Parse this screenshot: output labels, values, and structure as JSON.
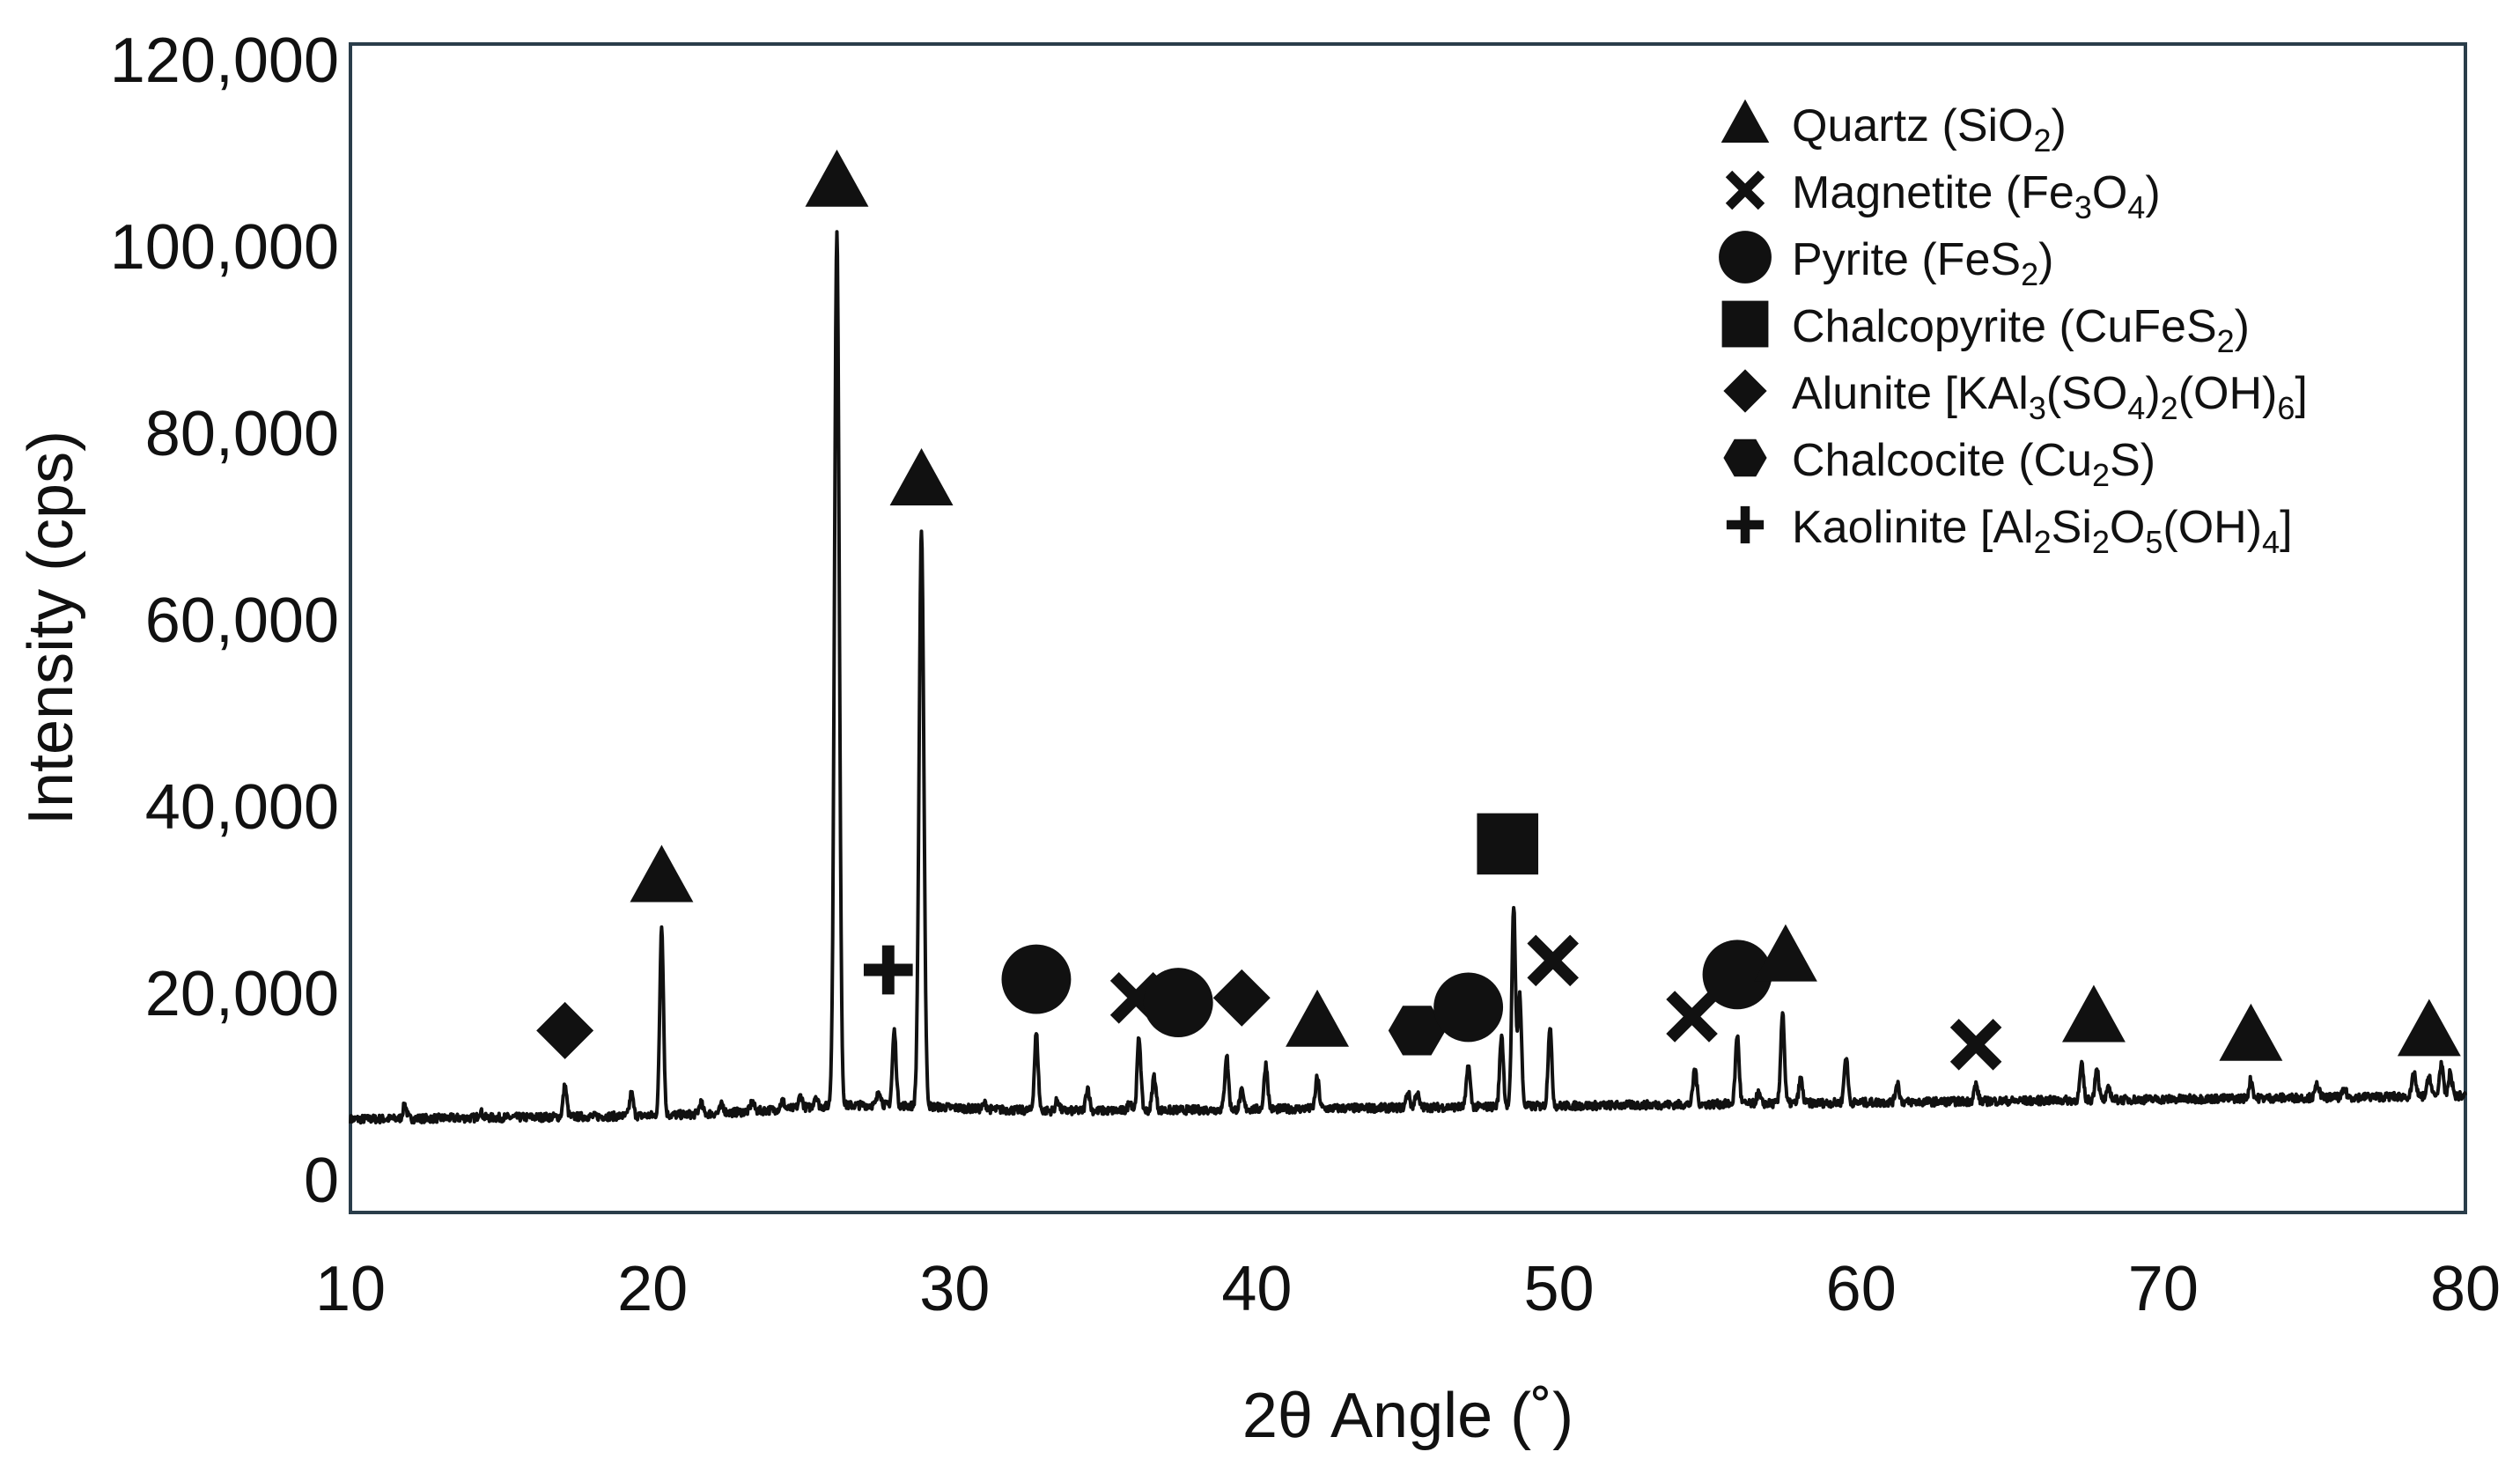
{
  "chart_data": {
    "type": "line",
    "title": "",
    "xlabel": "2θ Angle (˚)",
    "ylabel": "Intensity (cps)",
    "xlim": [
      10,
      80
    ],
    "ylim": [
      0,
      120000
    ],
    "xticks": [
      10,
      20,
      30,
      40,
      50,
      60,
      70,
      80
    ],
    "xtick_labels": [
      "10",
      "20",
      "30",
      "40",
      "50",
      "60",
      "70",
      "80"
    ],
    "yticks": [
      0,
      20000,
      40000,
      60000,
      80000,
      100000,
      120000
    ],
    "ytick_labels": [
      "0",
      "20,000",
      "40,000",
      "60,000",
      "80,000",
      "100,000",
      "120,000"
    ],
    "grid": false,
    "legend_position": "top-right",
    "background": {
      "x_start": 10,
      "y_start": 6500,
      "x_end": 80,
      "y_end": 9000
    },
    "series": [
      {
        "line_color": "#111111",
        "peaks": [
          {
            "x": 11.8,
            "y": 1500
          },
          {
            "x": 14.3,
            "y": 700
          },
          {
            "x": 17.1,
            "y": 3300
          },
          {
            "x": 19.3,
            "y": 2400
          },
          {
            "x": 20.3,
            "y": 20500
          },
          {
            "x": 21.6,
            "y": 1200
          },
          {
            "x": 22.3,
            "y": 900
          },
          {
            "x": 23.3,
            "y": 1000
          },
          {
            "x": 24.3,
            "y": 900
          },
          {
            "x": 24.9,
            "y": 1300
          },
          {
            "x": 25.4,
            "y": 1200
          },
          {
            "x": 26.1,
            "y": 94000
          },
          {
            "x": 27.5,
            "y": 1600
          },
          {
            "x": 28.0,
            "y": 8000
          },
          {
            "x": 28.9,
            "y": 62000
          },
          {
            "x": 31.0,
            "y": 600
          },
          {
            "x": 32.7,
            "y": 8200
          },
          {
            "x": 33.4,
            "y": 1200
          },
          {
            "x": 34.4,
            "y": 2500
          },
          {
            "x": 35.8,
            "y": 1000
          },
          {
            "x": 36.1,
            "y": 7800
          },
          {
            "x": 36.6,
            "y": 3700
          },
          {
            "x": 39.0,
            "y": 5800
          },
          {
            "x": 39.5,
            "y": 1900
          },
          {
            "x": 40.3,
            "y": 4800
          },
          {
            "x": 42.0,
            "y": 3300
          },
          {
            "x": 45.0,
            "y": 1600
          },
          {
            "x": 45.3,
            "y": 1600
          },
          {
            "x": 47.0,
            "y": 4500
          },
          {
            "x": 48.1,
            "y": 7700
          },
          {
            "x": 48.5,
            "y": 21500
          },
          {
            "x": 48.7,
            "y": 12000
          },
          {
            "x": 49.7,
            "y": 8600
          },
          {
            "x": 54.5,
            "y": 3900
          },
          {
            "x": 55.9,
            "y": 7400
          },
          {
            "x": 56.6,
            "y": 1100
          },
          {
            "x": 57.4,
            "y": 9800
          },
          {
            "x": 58.0,
            "y": 2600
          },
          {
            "x": 59.5,
            "y": 5000
          },
          {
            "x": 61.2,
            "y": 2100
          },
          {
            "x": 63.8,
            "y": 1800
          },
          {
            "x": 67.3,
            "y": 3700
          },
          {
            "x": 67.8,
            "y": 3500
          },
          {
            "x": 68.2,
            "y": 1200
          },
          {
            "x": 72.9,
            "y": 2000
          },
          {
            "x": 75.1,
            "y": 1500
          },
          {
            "x": 76.0,
            "y": 800
          },
          {
            "x": 78.3,
            "y": 2500
          },
          {
            "x": 78.8,
            "y": 2200
          },
          {
            "x": 79.2,
            "y": 3500
          },
          {
            "x": 79.5,
            "y": 2500
          }
        ]
      }
    ],
    "legend": [
      {
        "symbol": "triangle",
        "label": "Quartz (SiO",
        "sub": "2",
        "suffix": ")"
      },
      {
        "symbol": "cross-x",
        "label": "Magnetite (Fe",
        "sub": "3",
        "mid": "O",
        "sub2": "4",
        "suffix": ")"
      },
      {
        "symbol": "circle",
        "label": "Pyrite (FeS",
        "sub": "2",
        "suffix": ")"
      },
      {
        "symbol": "square",
        "label": "Chalcopyrite (CuFeS",
        "sub": "2",
        "suffix": ")"
      },
      {
        "symbol": "diamond",
        "label": "Alunite [KAl",
        "sub": "3",
        "mid": "(SO",
        "sub2": "4",
        "mid2": ")",
        "sub3": "2",
        "mid3": "(OH)",
        "sub4": "6",
        "suffix": "]"
      },
      {
        "symbol": "hexagon",
        "label": "Chalcocite (Cu",
        "sub": "2",
        "suffix": "S)"
      },
      {
        "symbol": "plus",
        "label": "Kaolinite [Al",
        "sub": "2",
        "mid": "Si",
        "sub2": "2",
        "mid2": "O",
        "sub3": "5",
        "mid3": "(OH)",
        "sub4": "4",
        "suffix": "]"
      }
    ],
    "annotations": [
      {
        "symbol": "diamond",
        "x": 17.1,
        "y": 16000
      },
      {
        "symbol": "triangle",
        "x": 20.3,
        "y": 32500
      },
      {
        "symbol": "triangle",
        "x": 26.1,
        "y": 107000
      },
      {
        "symbol": "plus",
        "x": 27.8,
        "y": 22500
      },
      {
        "symbol": "triangle",
        "x": 28.9,
        "y": 75000
      },
      {
        "symbol": "circle",
        "x": 32.7,
        "y": 21500
      },
      {
        "symbol": "cross-x",
        "x": 36.0,
        "y": 19500
      },
      {
        "symbol": "circle",
        "x": 37.4,
        "y": 19000
      },
      {
        "symbol": "diamond",
        "x": 39.5,
        "y": 19500
      },
      {
        "symbol": "triangle",
        "x": 42.0,
        "y": 17000
      },
      {
        "symbol": "hexagon",
        "x": 45.3,
        "y": 16000
      },
      {
        "symbol": "circle",
        "x": 47.0,
        "y": 18500
      },
      {
        "symbol": "square",
        "x": 48.3,
        "y": 36000
      },
      {
        "symbol": "cross-x",
        "x": 49.8,
        "y": 23500
      },
      {
        "symbol": "cross-x",
        "x": 54.4,
        "y": 17500
      },
      {
        "symbol": "circle",
        "x": 55.9,
        "y": 22000
      },
      {
        "symbol": "triangle",
        "x": 57.5,
        "y": 24000
      },
      {
        "symbol": "cross-x",
        "x": 63.8,
        "y": 14500
      },
      {
        "symbol": "triangle",
        "x": 67.7,
        "y": 17500
      },
      {
        "symbol": "triangle",
        "x": 72.9,
        "y": 15500
      },
      {
        "symbol": "triangle",
        "x": 78.8,
        "y": 16000
      }
    ]
  }
}
